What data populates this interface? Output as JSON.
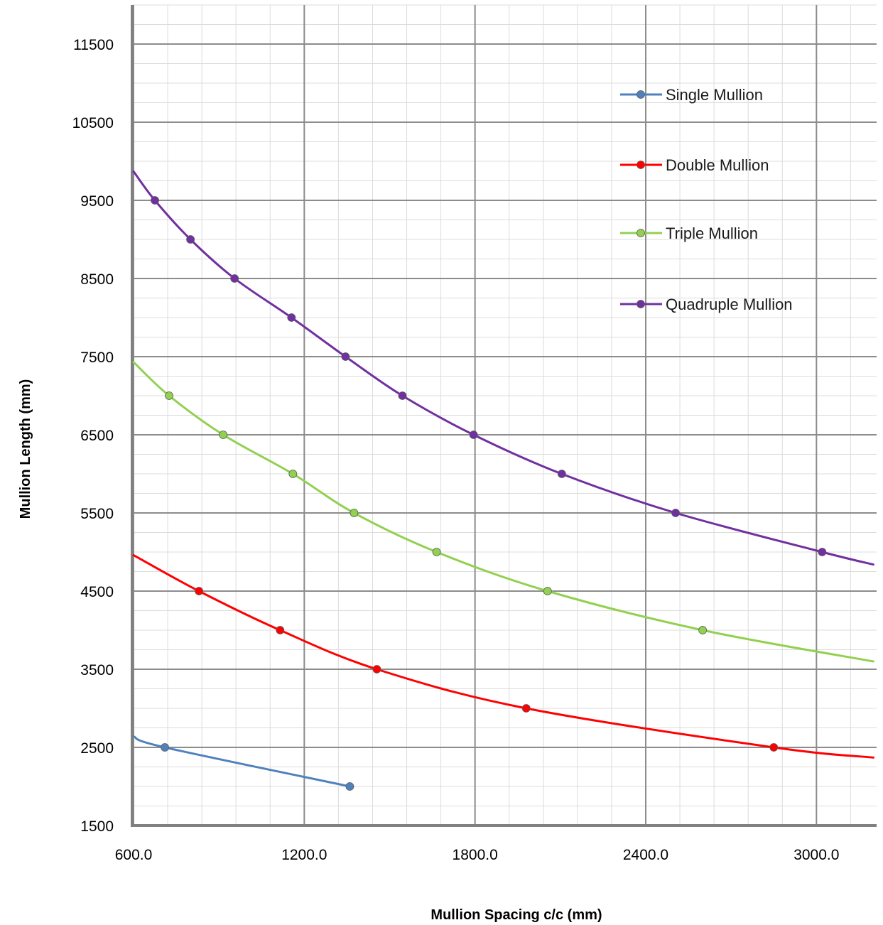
{
  "chart_data": {
    "type": "line",
    "title": "",
    "xlabel": "Mullion Spacing c/c (mm)",
    "ylabel": "Mullion Length (mm)",
    "xlim": [
      600,
      3200
    ],
    "ylim": [
      1500,
      12000
    ],
    "x_ticks": [
      600,
      1200,
      1800,
      2400,
      3000
    ],
    "x_tick_labels": [
      "600.0",
      "1200.0",
      "1800.0",
      "2400.0",
      "3000.0"
    ],
    "y_ticks": [
      1500,
      2500,
      3500,
      4500,
      5500,
      6500,
      7500,
      8500,
      9500,
      10500,
      11500
    ],
    "y_tick_labels": [
      "1500",
      "2500",
      "3500",
      "4500",
      "5500",
      "6500",
      "7500",
      "8500",
      "9500",
      "10500",
      "11500"
    ],
    "x_minor_step": 120,
    "y_minor_step": 250,
    "grid": true,
    "legend_position": "top-right",
    "series": [
      {
        "name": "Single Mullion",
        "color": "#4f81bd",
        "curve_start": [
          600,
          2640
        ],
        "points": [
          [
            710,
            2500
          ],
          [
            1360,
            2000
          ]
        ]
      },
      {
        "name": "Double Mullion",
        "color": "#ff0000",
        "curve_start": [
          600,
          4960
        ],
        "curve_end": [
          3200,
          2370
        ],
        "points": [
          [
            830,
            4500
          ],
          [
            1115,
            4000
          ],
          [
            1455,
            3500
          ],
          [
            1980,
            3000
          ],
          [
            2850,
            2500
          ]
        ]
      },
      {
        "name": "Triple Mullion",
        "color": "#92d050",
        "curve_start": [
          600,
          7430
        ],
        "curve_end": [
          3200,
          3600
        ],
        "points": [
          [
            725,
            7000
          ],
          [
            915,
            6500
          ],
          [
            1160,
            6000
          ],
          [
            1375,
            5500
          ],
          [
            1665,
            5000
          ],
          [
            2055,
            4500
          ],
          [
            2600,
            4000
          ]
        ]
      },
      {
        "name": "Quadruple Mullion",
        "color": "#7030a0",
        "curve_start": [
          600,
          9870
        ],
        "curve_end": [
          3200,
          4840
        ],
        "points": [
          [
            675,
            9500
          ],
          [
            800,
            9000
          ],
          [
            955,
            8500
          ],
          [
            1155,
            8000
          ],
          [
            1345,
            7500
          ],
          [
            1545,
            7000
          ],
          [
            1795,
            6500
          ],
          [
            2105,
            6000
          ],
          [
            2505,
            5500
          ],
          [
            3020,
            5000
          ]
        ]
      }
    ]
  }
}
